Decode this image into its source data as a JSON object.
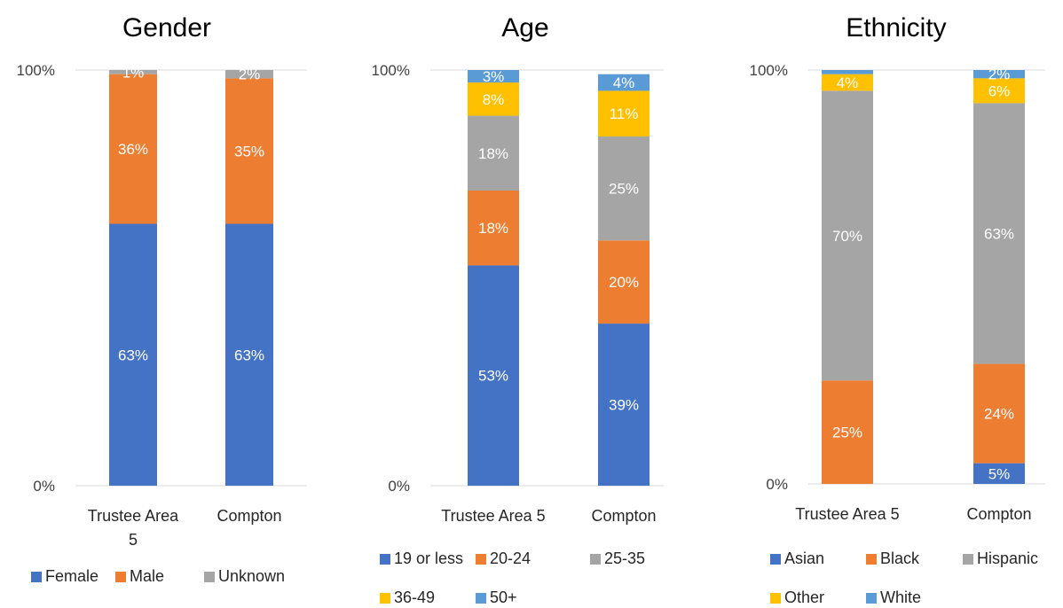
{
  "chart_data": [
    {
      "type": "bar",
      "stacked": true,
      "title": "Gender",
      "categories": [
        [
          "Trustee Area",
          "5"
        ],
        [
          "Compton"
        ]
      ],
      "y_ticks": [
        "0%",
        "100%"
      ],
      "ylim": [
        0,
        100
      ],
      "series": [
        {
          "name": "Female",
          "color": "#4472C4",
          "values": [
            63,
            63
          ],
          "labels": [
            "63%",
            "63%"
          ]
        },
        {
          "name": "Male",
          "color": "#ED7D31",
          "values": [
            36,
            35
          ],
          "labels": [
            "36%",
            "35%"
          ]
        },
        {
          "name": "Unknown",
          "color": "#A5A5A5",
          "values": [
            1,
            2
          ],
          "labels": [
            "1%",
            "2%"
          ]
        }
      ],
      "legend_position": "bottom"
    },
    {
      "type": "bar",
      "stacked": true,
      "title": "Age",
      "categories": [
        [
          "Trustee Area 5"
        ],
        [
          "Compton"
        ]
      ],
      "y_ticks": [
        "0%",
        "100%"
      ],
      "ylim": [
        0,
        100
      ],
      "series": [
        {
          "name": "19 or less",
          "color": "#4472C4",
          "values": [
            53,
            39
          ],
          "labels": [
            "53%",
            "39%"
          ]
        },
        {
          "name": "20-24",
          "color": "#ED7D31",
          "values": [
            18,
            20
          ],
          "labels": [
            "18%",
            "20%"
          ]
        },
        {
          "name": "25-35",
          "color": "#A5A5A5",
          "values": [
            18,
            25
          ],
          "labels": [
            "18%",
            "25%"
          ]
        },
        {
          "name": "36-49",
          "color": "#FFC000",
          "values": [
            8,
            11
          ],
          "labels": [
            "8%",
            "11%"
          ]
        },
        {
          "name": "50+",
          "color": "#5B9BD5",
          "values": [
            3,
            4
          ],
          "labels": [
            "3%",
            "4%"
          ]
        }
      ],
      "legend_position": "bottom"
    },
    {
      "type": "bar",
      "stacked": true,
      "title": "Ethnicity",
      "categories": [
        [
          "Trustee Area 5"
        ],
        [
          "Compton"
        ]
      ],
      "y_ticks": [
        "0%",
        "100%"
      ],
      "ylim": [
        0,
        100
      ],
      "series": [
        {
          "name": "Asian",
          "color": "#4472C4",
          "values": [
            0,
            5
          ],
          "labels": [
            "",
            "5%"
          ]
        },
        {
          "name": "Black",
          "color": "#ED7D31",
          "values": [
            25,
            24
          ],
          "labels": [
            "25%",
            "24%"
          ]
        },
        {
          "name": "Hispanic",
          "color": "#A5A5A5",
          "values": [
            70,
            63
          ],
          "labels": [
            "70%",
            "63%"
          ]
        },
        {
          "name": "Other",
          "color": "#FFC000",
          "values": [
            4,
            6
          ],
          "labels": [
            "4%",
            "6%"
          ]
        },
        {
          "name": "White",
          "color": "#5B9BD5",
          "values": [
            1,
            2
          ],
          "labels": [
            "",
            "2%"
          ]
        }
      ],
      "legend_position": "bottom"
    }
  ]
}
